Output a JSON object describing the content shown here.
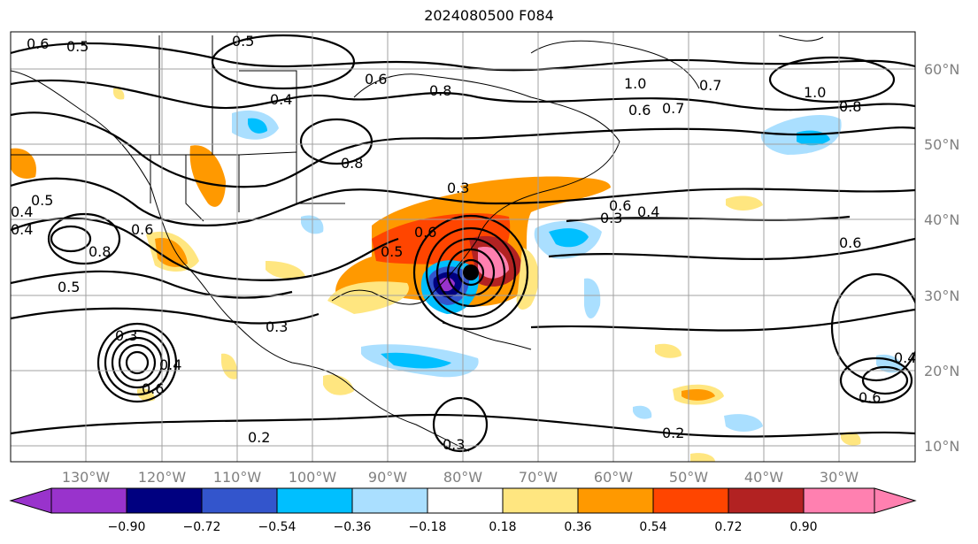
{
  "title": "2024080500 F084",
  "lon_labels": [
    "130°W",
    "120°W",
    "110°W",
    "100°W",
    "90°W",
    "80°W",
    "70°W",
    "60°W",
    "50°W",
    "40°W",
    "30°W"
  ],
  "lat_labels": [
    "60°N",
    "50°N",
    "40°N",
    "30°N",
    "20°N",
    "10°N"
  ],
  "colorbar": {
    "ticks": [
      "−0.90",
      "−0.72",
      "−0.54",
      "−0.36",
      "−0.18",
      "0.18",
      "0.36",
      "0.54",
      "0.72",
      "0.90"
    ],
    "colors": [
      "#9933cc",
      "#000080",
      "#3355cc",
      "#00bfff",
      "#aadfff",
      "#ffffff",
      "#ffe680",
      "#ff9900",
      "#ff4500",
      "#b22222",
      "#ff80b0"
    ]
  },
  "contour_labels": [
    "0.6",
    "0.5",
    "0.5",
    "0.4",
    "0.6",
    "0.8",
    "1.0",
    "0.7",
    "0.7",
    "1.0",
    "0.8",
    "0.8",
    "0.6",
    "0.4",
    "0.5",
    "0.4",
    "0.8",
    "0.6",
    "0.5",
    "0.3",
    "0.4",
    "0.6",
    "0.6",
    "0.5",
    "0.3",
    "0.3",
    "0.4",
    "0.6",
    "0.2",
    "0.3",
    "0.2",
    "0.6",
    "0.6",
    "0.4",
    "0.3"
  ],
  "marker": "storm-center"
}
